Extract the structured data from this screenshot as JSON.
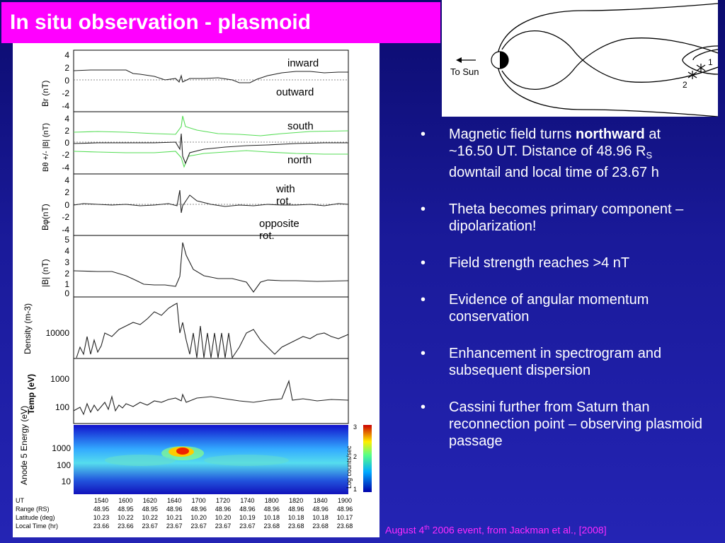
{
  "title": "In situ observation - plasmoid",
  "annotations": {
    "inward": "inward",
    "outward": "outward",
    "south": "south",
    "north": "north",
    "with_rot": "with rot.",
    "opposite_rot": "opposite rot."
  },
  "panels": [
    {
      "ylabel": "Br (nT)",
      "ticks": [
        "4",
        "2",
        "0",
        "-2",
        "-4"
      ]
    },
    {
      "ylabel": "Bθ +/- |B| (nT)",
      "ticks": [
        "4",
        "2",
        "0",
        "-2",
        "-4"
      ]
    },
    {
      "ylabel": "Bφ(nT)",
      "ticks": [
        "4",
        "2",
        "0",
        "-2",
        "-4"
      ]
    },
    {
      "ylabel": "|B| (nT)",
      "ticks": [
        "5",
        "4",
        "3",
        "2",
        "1",
        "0"
      ]
    },
    {
      "ylabel": "Density (m-3)",
      "ticks": [
        "10000"
      ]
    },
    {
      "ylabel": "Temp (eV)",
      "ticks": [
        "1000",
        "100"
      ]
    },
    {
      "ylabel": "Anode 5 Energy (eV)",
      "ticks": [
        "1000",
        "100",
        "10"
      ]
    }
  ],
  "colorbar": {
    "label": "Log counts/sec",
    "ticks": [
      "3",
      "2",
      "1"
    ]
  },
  "ephemeris": {
    "row_labels": [
      "UT",
      "Range (RS)",
      "Latitude (deg)",
      "Local Time (hr)"
    ],
    "columns": [
      [
        "1540",
        "48.95",
        "10.23",
        "23.66"
      ],
      [
        "1600",
        "48.95",
        "10.22",
        "23.66"
      ],
      [
        "1620",
        "48.95",
        "10.22",
        "23.67"
      ],
      [
        "1640",
        "48.96",
        "10.21",
        "23.67"
      ],
      [
        "1700",
        "48.96",
        "10.20",
        "23.67"
      ],
      [
        "1720",
        "48.96",
        "10.20",
        "23.67"
      ],
      [
        "1740",
        "48.96",
        "10.19",
        "23.67"
      ],
      [
        "1800",
        "48.96",
        "10.18",
        "23.68"
      ],
      [
        "1820",
        "48.96",
        "10.18",
        "23.68"
      ],
      [
        "1840",
        "48.96",
        "10.18",
        "23.68"
      ],
      [
        "1900",
        "48.96",
        "10.17",
        "23.68"
      ]
    ]
  },
  "diagram": {
    "to_sun": "To Sun",
    "point1": "1",
    "point2": "2"
  },
  "bullets": [
    {
      "pre": "Magnetic field turns ",
      "bold": "northward",
      "post": " at ~16.50 UT.  Distance of 48.96 R",
      "sub": "S",
      "post2": " downtail and local time of 23.67 h"
    },
    {
      "text": "Theta becomes primary component – dipolarization!"
    },
    {
      "text": "Field strength reaches >4 nT"
    },
    {
      "text": "Evidence of angular momentum conservation"
    },
    {
      "text": "Enhancement in spectrogram and subsequent dispersion"
    },
    {
      "text": "Cassini further from Saturn than reconnection point – observing plasmoid passage"
    }
  ],
  "bullet_symbol": "•",
  "caption": {
    "pre": "August 4",
    "sup": "th",
    "post": " 2006 event, from Jackman et al., [2008]"
  },
  "colors": {
    "title_bg": "#ff00ff",
    "caption": "#ff2bff",
    "trace": "#222222",
    "envelope": "#55dd55"
  }
}
